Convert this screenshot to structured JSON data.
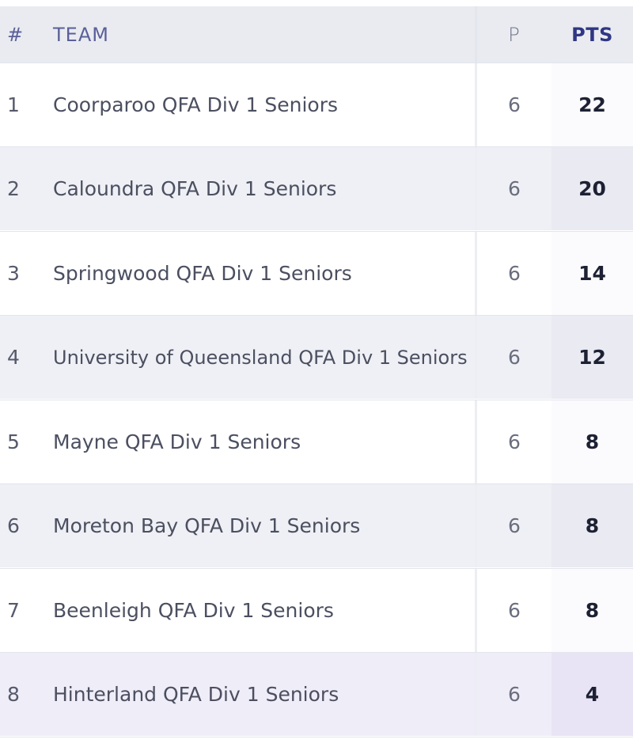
{
  "table": {
    "headers": {
      "position": "#",
      "team": "TEAM",
      "played": "P",
      "points": "PTS"
    },
    "rows": [
      {
        "position": "1",
        "team": "Coorparoo QFA Div 1 Seniors",
        "played": "6",
        "points": "22"
      },
      {
        "position": "2",
        "team": "Caloundra QFA Div 1 Seniors",
        "played": "6",
        "points": "20"
      },
      {
        "position": "3",
        "team": "Springwood QFA Div 1 Seniors",
        "played": "6",
        "points": "14"
      },
      {
        "position": "4",
        "team": "University of Queensland QFA Div 1 Seniors",
        "played": "6",
        "points": "12"
      },
      {
        "position": "5",
        "team": "Mayne QFA Div 1 Seniors",
        "played": "6",
        "points": "8"
      },
      {
        "position": "6",
        "team": "Moreton Bay QFA Div 1 Seniors",
        "played": "6",
        "points": "8"
      },
      {
        "position": "7",
        "team": "Beenleigh QFA Div 1 Seniors",
        "played": "6",
        "points": "8"
      },
      {
        "position": "8",
        "team": "Hinterland QFA Div 1 Seniors",
        "played": "6",
        "points": "4"
      }
    ]
  },
  "colors": {
    "header_background": "#e9ebf1",
    "header_text": "#5a5f99",
    "points_header": "#2f3684",
    "highlight_row": "#efedf8"
  }
}
